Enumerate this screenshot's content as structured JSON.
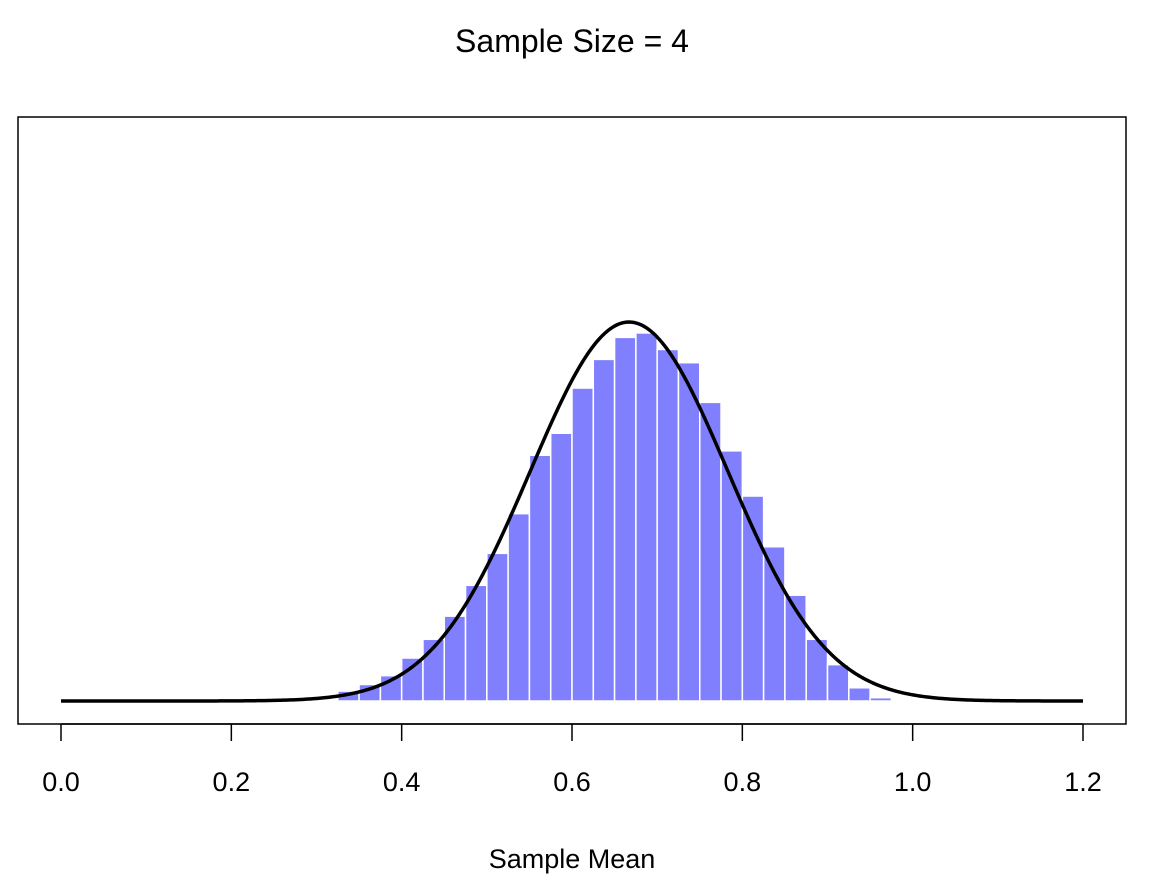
{
  "chart_data": {
    "type": "bar",
    "title": "Sample Size = 4",
    "xlabel": "Sample Mean",
    "ylabel": "",
    "xlim": [
      0,
      1.2
    ],
    "ylim": [
      0,
      5.1
    ],
    "y_axis_shown": false,
    "grid": false,
    "x_ticks": [
      0.0,
      0.2,
      0.4,
      0.6,
      0.8,
      1.0,
      1.2
    ],
    "x_tick_labels": [
      "0.0",
      "0.2",
      "0.4",
      "0.6",
      "0.8",
      "1.0",
      "1.2"
    ],
    "histogram": {
      "bin_width": 0.025,
      "bin_starts": [
        0.325,
        0.35,
        0.375,
        0.4,
        0.425,
        0.45,
        0.475,
        0.5,
        0.525,
        0.55,
        0.575,
        0.6,
        0.625,
        0.65,
        0.675,
        0.7,
        0.725,
        0.75,
        0.775,
        0.8,
        0.825,
        0.85,
        0.875,
        0.9,
        0.925,
        0.95
      ],
      "density": [
        0.09,
        0.15,
        0.23,
        0.39,
        0.56,
        0.77,
        1.05,
        1.34,
        1.7,
        2.23,
        2.43,
        2.84,
        3.1,
        3.3,
        3.34,
        3.19,
        3.07,
        2.71,
        2.27,
        1.86,
        1.4,
        0.96,
        0.56,
        0.33,
        0.12,
        0.03
      ],
      "color": "#8080ff",
      "border_color": "#ffffff"
    },
    "curve": {
      "type": "normal-density",
      "mean": 0.667,
      "sd": 0.116,
      "x_range": [
        0,
        1.2
      ],
      "color": "#000000"
    }
  }
}
